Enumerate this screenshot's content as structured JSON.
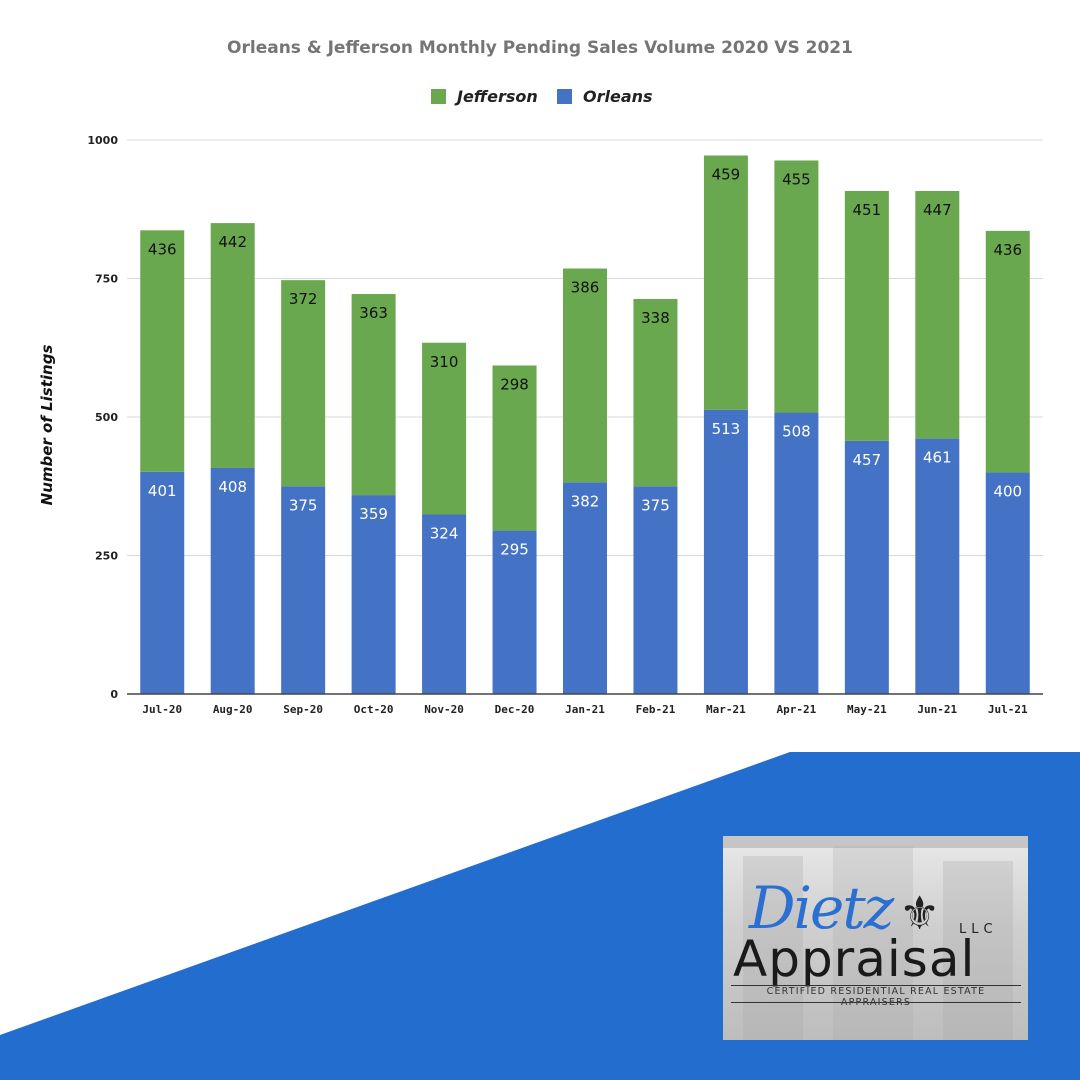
{
  "colors": {
    "jefferson": "#6aa84f",
    "orleans": "#4472c4",
    "banner": "#226dce",
    "grid": "#d9d9d9",
    "axis": "#444444"
  },
  "chart_data": {
    "type": "bar",
    "stacked": true,
    "title": "Orleans & Jefferson  Monthly Pending Sales Volume 2020 VS 2021",
    "xlabel": "",
    "ylabel": "Number of Listings",
    "ylim": [
      0,
      1000
    ],
    "yticks": [
      0,
      250,
      500,
      750,
      1000
    ],
    "grid": true,
    "legend_position": "top-center",
    "categories": [
      "Jul-20",
      "Aug-20",
      "Sep-20",
      "Oct-20",
      "Nov-20",
      "Dec-20",
      "Jan-21",
      "Feb-21",
      "Mar-21",
      "Apr-21",
      "May-21",
      "Jun-21",
      "Jul-21"
    ],
    "legend_order": [
      "Jefferson",
      "Orleans"
    ],
    "series": [
      {
        "name": "Orleans",
        "color": "#4472c4",
        "values": [
          401,
          408,
          375,
          359,
          324,
          295,
          382,
          375,
          513,
          508,
          457,
          461,
          400
        ]
      },
      {
        "name": "Jefferson",
        "color": "#6aa84f",
        "values": [
          436,
          442,
          372,
          363,
          310,
          298,
          386,
          338,
          459,
          455,
          451,
          447,
          436
        ]
      }
    ]
  },
  "logo": {
    "script": "Dietz",
    "fleur": "⚜",
    "llc": "LLC",
    "word": "Appraisal",
    "tagline": "CERTIFIED RESIDENTIAL REAL ESTATE APPRAISERS"
  }
}
